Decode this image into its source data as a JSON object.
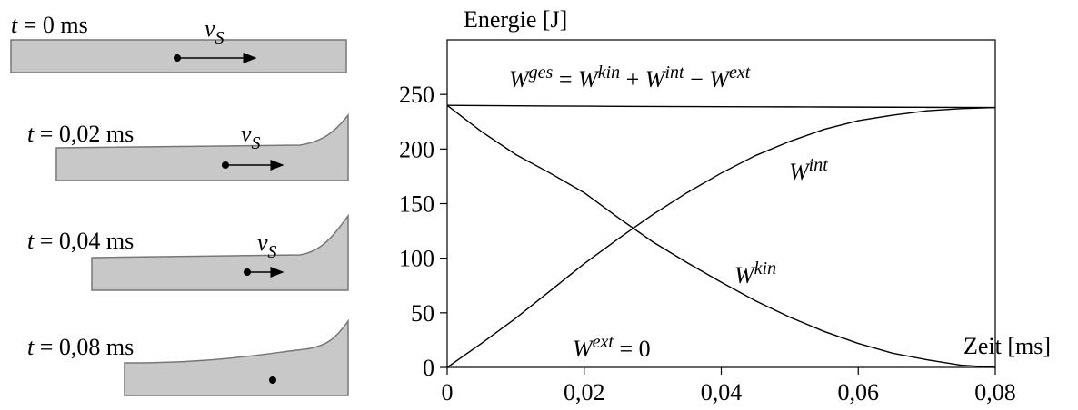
{
  "snapshots": {
    "time_symbol": "t",
    "velocity": {
      "base": "v",
      "sub": "S"
    },
    "labels": [
      " = 0 ms",
      " = 0,02 ms",
      " = 0,04 ms",
      " = 0,08 ms"
    ]
  },
  "chart_data": {
    "type": "line",
    "ylabel": "Energie [J]",
    "xlabel": "Zeit [ms]",
    "xlim": [
      0,
      0.08
    ],
    "ylim": [
      0,
      300
    ],
    "xticks": [
      {
        "value": 0,
        "label": "0"
      },
      {
        "value": 0.02,
        "label": "0,02"
      },
      {
        "value": 0.04,
        "label": "0,04"
      },
      {
        "value": 0.06,
        "label": "0,06"
      },
      {
        "value": 0.08,
        "label": "0,08"
      }
    ],
    "yticks": [
      0,
      50,
      100,
      150,
      200,
      250
    ],
    "x": [
      0,
      0.005,
      0.01,
      0.015,
      0.02,
      0.025,
      0.03,
      0.035,
      0.04,
      0.045,
      0.05,
      0.055,
      0.06,
      0.065,
      0.07,
      0.075,
      0.08
    ],
    "series": [
      {
        "color": "#000000",
        "values": [
          240,
          239.8,
          239.6,
          239.4,
          239.3,
          239.1,
          239,
          238.9,
          238.8,
          238.7,
          238.6,
          238.5,
          238.4,
          238.3,
          238.2,
          238.1,
          238
        ]
      },
      {
        "color": "#000000",
        "values": [
          240,
          216,
          195,
          178,
          160,
          137,
          115,
          96,
          78,
          61,
          46,
          33,
          22,
          13,
          7,
          2,
          0
        ]
      },
      {
        "color": "#000000",
        "values": [
          0,
          22,
          45,
          70,
          95,
          118,
          140,
          160,
          178,
          194,
          207,
          218,
          226,
          231,
          235,
          237,
          238
        ]
      }
    ],
    "annotations": [
      {
        "parts": [
          {
            "text": "W",
            "style": "italic"
          },
          {
            "text": "ges",
            "style": "sup"
          },
          {
            "text": " = ",
            "style": "plain"
          },
          {
            "text": "W",
            "style": "italic"
          },
          {
            "text": "kin",
            "style": "sup"
          },
          {
            "text": " + ",
            "style": "plain"
          },
          {
            "text": "W",
            "style": "italic"
          },
          {
            "text": "int",
            "style": "sup"
          },
          {
            "text": " − ",
            "style": "plain"
          },
          {
            "text": "W",
            "style": "italic"
          },
          {
            "text": "ext",
            "style": "sup"
          }
        ]
      },
      {
        "parts": [
          {
            "text": "W",
            "style": "italic"
          },
          {
            "text": "int",
            "style": "sup"
          }
        ]
      },
      {
        "parts": [
          {
            "text": "W",
            "style": "italic"
          },
          {
            "text": "kin",
            "style": "sup"
          }
        ]
      },
      {
        "parts": [
          {
            "text": "W",
            "style": "italic"
          },
          {
            "text": "ext",
            "style": "sup"
          },
          {
            "text": " = 0",
            "style": "plain"
          }
        ]
      }
    ]
  }
}
